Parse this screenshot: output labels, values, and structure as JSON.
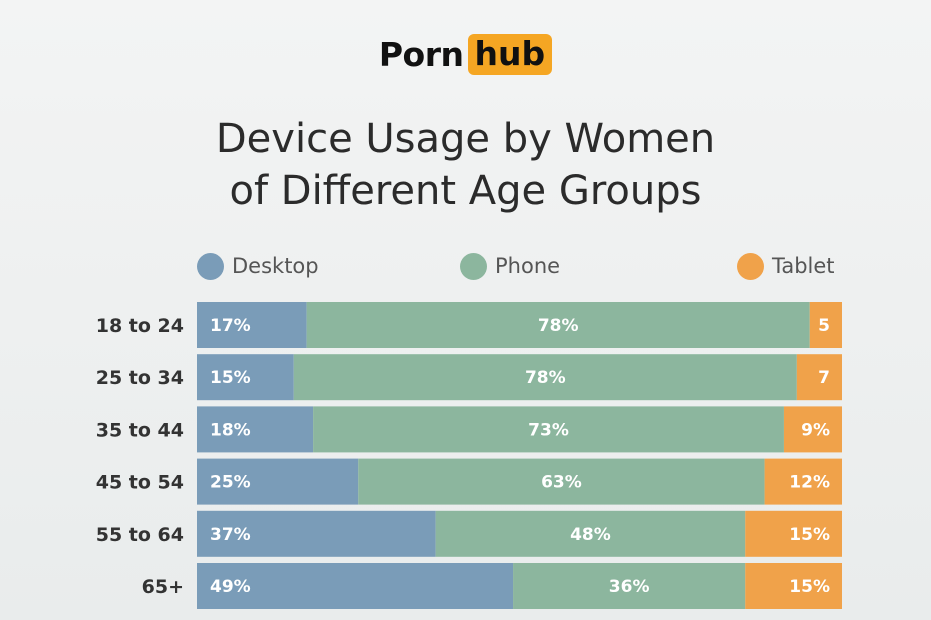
{
  "brand": {
    "part1": "Porn",
    "part2": "hub"
  },
  "chart_data": {
    "type": "bar",
    "orientation": "horizontal",
    "stacked": true,
    "title_line1": "Device Usage by Women",
    "title_line2": "of Different Age Groups",
    "categories": [
      "18 to 24",
      "25 to 34",
      "35 to 44",
      "45 to 54",
      "55 to 64",
      "65+"
    ],
    "series": [
      {
        "name": "Desktop",
        "color": "#7a9cb8",
        "values": [
          17,
          15,
          18,
          25,
          37,
          49
        ],
        "labels": [
          "17%",
          "15%",
          "18%",
          "25%",
          "37%",
          "49%"
        ]
      },
      {
        "name": "Phone",
        "color": "#8cb69e",
        "values": [
          78,
          78,
          73,
          63,
          48,
          36
        ],
        "labels": [
          "78%",
          "78%",
          "73%",
          "63%",
          "48%",
          "36%"
        ]
      },
      {
        "name": "Tablet",
        "color": "#f0a24a",
        "values": [
          5,
          7,
          9,
          12,
          15,
          15
        ],
        "labels": [
          "5",
          "7",
          "9%",
          "12%",
          "15%",
          "15%"
        ]
      }
    ],
    "legend_position": "top",
    "grid": false
  }
}
